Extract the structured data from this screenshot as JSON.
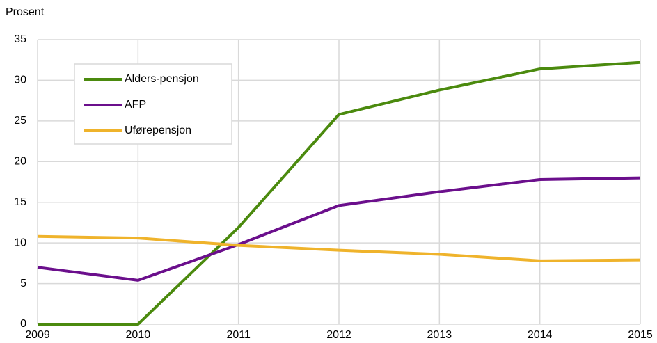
{
  "chart_data": {
    "type": "line",
    "y_label": "Prosent",
    "x": [
      2009,
      2010,
      2011,
      2012,
      2013,
      2014,
      2015
    ],
    "xlim": [
      2009,
      2015
    ],
    "xticks": [
      2009,
      2010,
      2011,
      2012,
      2013,
      2014,
      2015
    ],
    "ylim": [
      0,
      35
    ],
    "yticks": [
      0,
      5,
      10,
      15,
      20,
      25,
      30,
      35
    ],
    "grid": true,
    "legend": "upper left",
    "series": [
      {
        "name": "Alders-pensjon",
        "color": "#4b8a0e",
        "values": [
          0,
          0,
          11.9,
          25.8,
          28.8,
          31.4,
          32.2
        ]
      },
      {
        "name": "AFP",
        "color": "#6b0f8c",
        "values": [
          7.0,
          5.4,
          9.8,
          14.6,
          16.3,
          17.8,
          18.0
        ]
      },
      {
        "name": "Uførepensjon",
        "color": "#efb32b",
        "values": [
          10.8,
          10.6,
          9.7,
          9.1,
          8.6,
          7.8,
          7.9
        ]
      }
    ]
  }
}
